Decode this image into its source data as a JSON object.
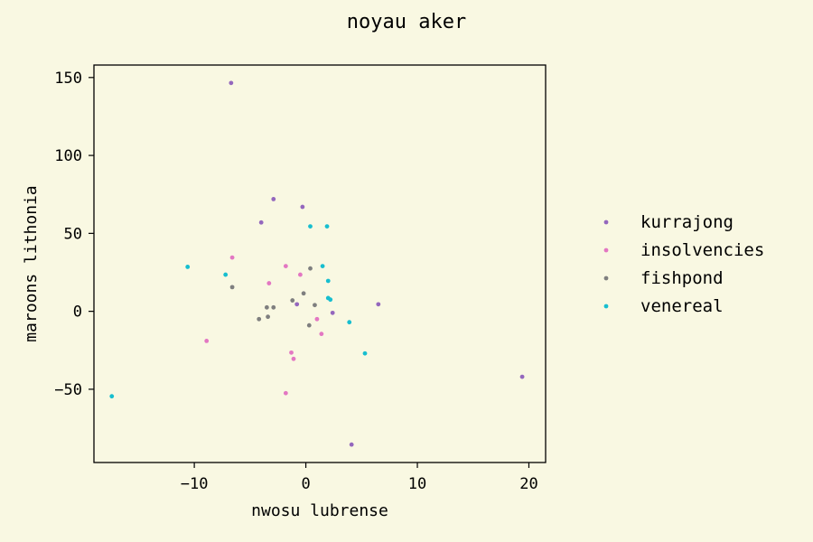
{
  "chart_data": {
    "type": "scatter",
    "title": "noyau aker",
    "xlabel": "nwosu lubrense",
    "ylabel": "maroons lithonia",
    "xlim": [
      -19.0,
      21.5
    ],
    "ylim": [
      -97,
      158
    ],
    "xticks": [
      -10,
      0,
      10,
      20
    ],
    "xtick_labels": [
      "−10",
      "0",
      "10",
      "20"
    ],
    "yticks": [
      -50,
      0,
      50,
      100,
      150
    ],
    "ytick_labels": [
      "−50",
      "0",
      "50",
      "100",
      "150"
    ],
    "grid": false,
    "legend_position": "right",
    "series": [
      {
        "name": "kurrajong",
        "color": "#9467bd",
        "points": [
          [
            -6.7,
            146.5
          ],
          [
            -2.9,
            72.0
          ],
          [
            -0.3,
            67.0
          ],
          [
            -4.0,
            57.0
          ],
          [
            6.5,
            4.5
          ],
          [
            -0.8,
            4.5
          ],
          [
            2.4,
            -1.0
          ],
          [
            19.4,
            -42.0
          ],
          [
            4.1,
            -85.5
          ]
        ]
      },
      {
        "name": "insolvencies",
        "color": "#e377c2",
        "points": [
          [
            -6.6,
            34.5
          ],
          [
            -1.8,
            29.0
          ],
          [
            -0.5,
            23.5
          ],
          [
            -3.3,
            18.0
          ],
          [
            1.0,
            -5.0
          ],
          [
            1.4,
            -14.5
          ],
          [
            -8.9,
            -19.0
          ],
          [
            -1.3,
            -26.5
          ],
          [
            -1.1,
            -30.5
          ],
          [
            -1.8,
            -52.5
          ]
        ]
      },
      {
        "name": "fishpond",
        "color": "#7f7f7f",
        "points": [
          [
            0.4,
            27.5
          ],
          [
            -6.6,
            15.5
          ],
          [
            -0.2,
            11.5
          ],
          [
            -1.2,
            7.0
          ],
          [
            0.8,
            4.0
          ],
          [
            -3.5,
            2.5
          ],
          [
            -2.9,
            2.5
          ],
          [
            -3.4,
            -3.5
          ],
          [
            -4.2,
            -5.0
          ],
          [
            0.3,
            -9.0
          ]
        ]
      },
      {
        "name": "venereal",
        "color": "#17becf",
        "points": [
          [
            0.4,
            54.5
          ],
          [
            1.9,
            54.5
          ],
          [
            -10.6,
            28.5
          ],
          [
            1.5,
            29.0
          ],
          [
            -7.2,
            23.5
          ],
          [
            2.0,
            19.5
          ],
          [
            2.0,
            8.5
          ],
          [
            2.2,
            7.5
          ],
          [
            3.9,
            -7.0
          ],
          [
            5.3,
            -27.0
          ],
          [
            -17.4,
            -54.5
          ]
        ]
      }
    ]
  }
}
